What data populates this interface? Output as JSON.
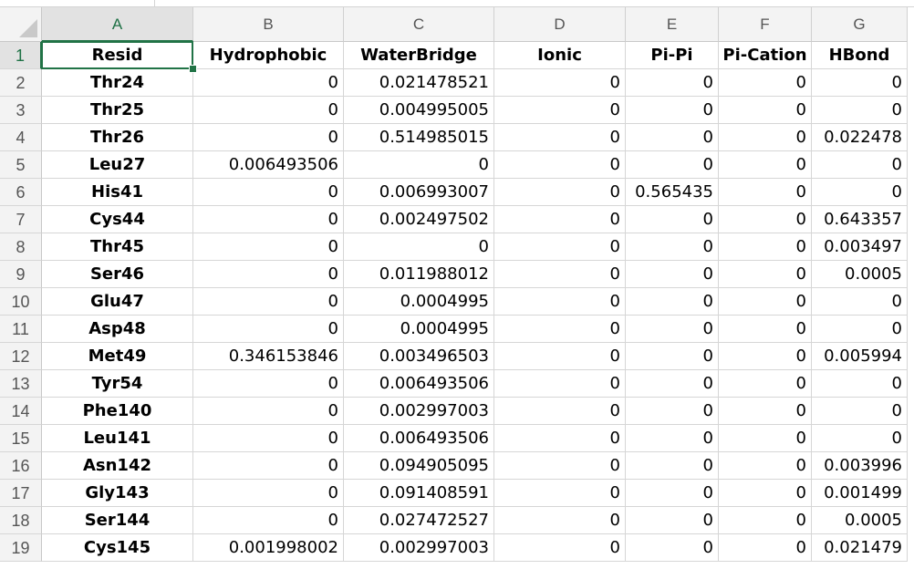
{
  "spreadsheet": {
    "columns": [
      "A",
      "B",
      "C",
      "D",
      "E",
      "F",
      "G"
    ],
    "active_cell": "A1",
    "rows": [
      {
        "n": "1",
        "cells": [
          "Resid",
          "Hydrophobic",
          "WaterBridge",
          "Ionic",
          "Pi-Pi",
          "Pi-Cation",
          "HBond"
        ]
      },
      {
        "n": "2",
        "cells": [
          "Thr24",
          "0",
          "0.021478521",
          "0",
          "0",
          "0",
          "0"
        ]
      },
      {
        "n": "3",
        "cells": [
          "Thr25",
          "0",
          "0.004995005",
          "0",
          "0",
          "0",
          "0"
        ]
      },
      {
        "n": "4",
        "cells": [
          "Thr26",
          "0",
          "0.514985015",
          "0",
          "0",
          "0",
          "0.022478"
        ]
      },
      {
        "n": "5",
        "cells": [
          "Leu27",
          "0.006493506",
          "0",
          "0",
          "0",
          "0",
          "0"
        ]
      },
      {
        "n": "6",
        "cells": [
          "His41",
          "0",
          "0.006993007",
          "0",
          "0.565435",
          "0",
          "0"
        ]
      },
      {
        "n": "7",
        "cells": [
          "Cys44",
          "0",
          "0.002497502",
          "0",
          "0",
          "0",
          "0.643357"
        ]
      },
      {
        "n": "8",
        "cells": [
          "Thr45",
          "0",
          "0",
          "0",
          "0",
          "0",
          "0.003497"
        ]
      },
      {
        "n": "9",
        "cells": [
          "Ser46",
          "0",
          "0.011988012",
          "0",
          "0",
          "0",
          "0.0005"
        ]
      },
      {
        "n": "10",
        "cells": [
          "Glu47",
          "0",
          "0.0004995",
          "0",
          "0",
          "0",
          "0"
        ]
      },
      {
        "n": "11",
        "cells": [
          "Asp48",
          "0",
          "0.0004995",
          "0",
          "0",
          "0",
          "0"
        ]
      },
      {
        "n": "12",
        "cells": [
          "Met49",
          "0.346153846",
          "0.003496503",
          "0",
          "0",
          "0",
          "0.005994"
        ]
      },
      {
        "n": "13",
        "cells": [
          "Tyr54",
          "0",
          "0.006493506",
          "0",
          "0",
          "0",
          "0"
        ]
      },
      {
        "n": "14",
        "cells": [
          "Phe140",
          "0",
          "0.002997003",
          "0",
          "0",
          "0",
          "0"
        ]
      },
      {
        "n": "15",
        "cells": [
          "Leu141",
          "0",
          "0.006493506",
          "0",
          "0",
          "0",
          "0"
        ]
      },
      {
        "n": "16",
        "cells": [
          "Asn142",
          "0",
          "0.094905095",
          "0",
          "0",
          "0",
          "0.003996"
        ]
      },
      {
        "n": "17",
        "cells": [
          "Gly143",
          "0",
          "0.091408591",
          "0",
          "0",
          "0",
          "0.001499"
        ]
      },
      {
        "n": "18",
        "cells": [
          "Ser144",
          "0",
          "0.027472527",
          "0",
          "0",
          "0",
          "0.0005"
        ]
      },
      {
        "n": "19",
        "cells": [
          "Cys145",
          "0.001998002",
          "0.002997003",
          "0",
          "0",
          "0",
          "0.021479"
        ]
      }
    ]
  },
  "colors": {
    "accent": "#217346",
    "header_bg": "#f3f3f3",
    "gridline": "#d6d6d6"
  }
}
